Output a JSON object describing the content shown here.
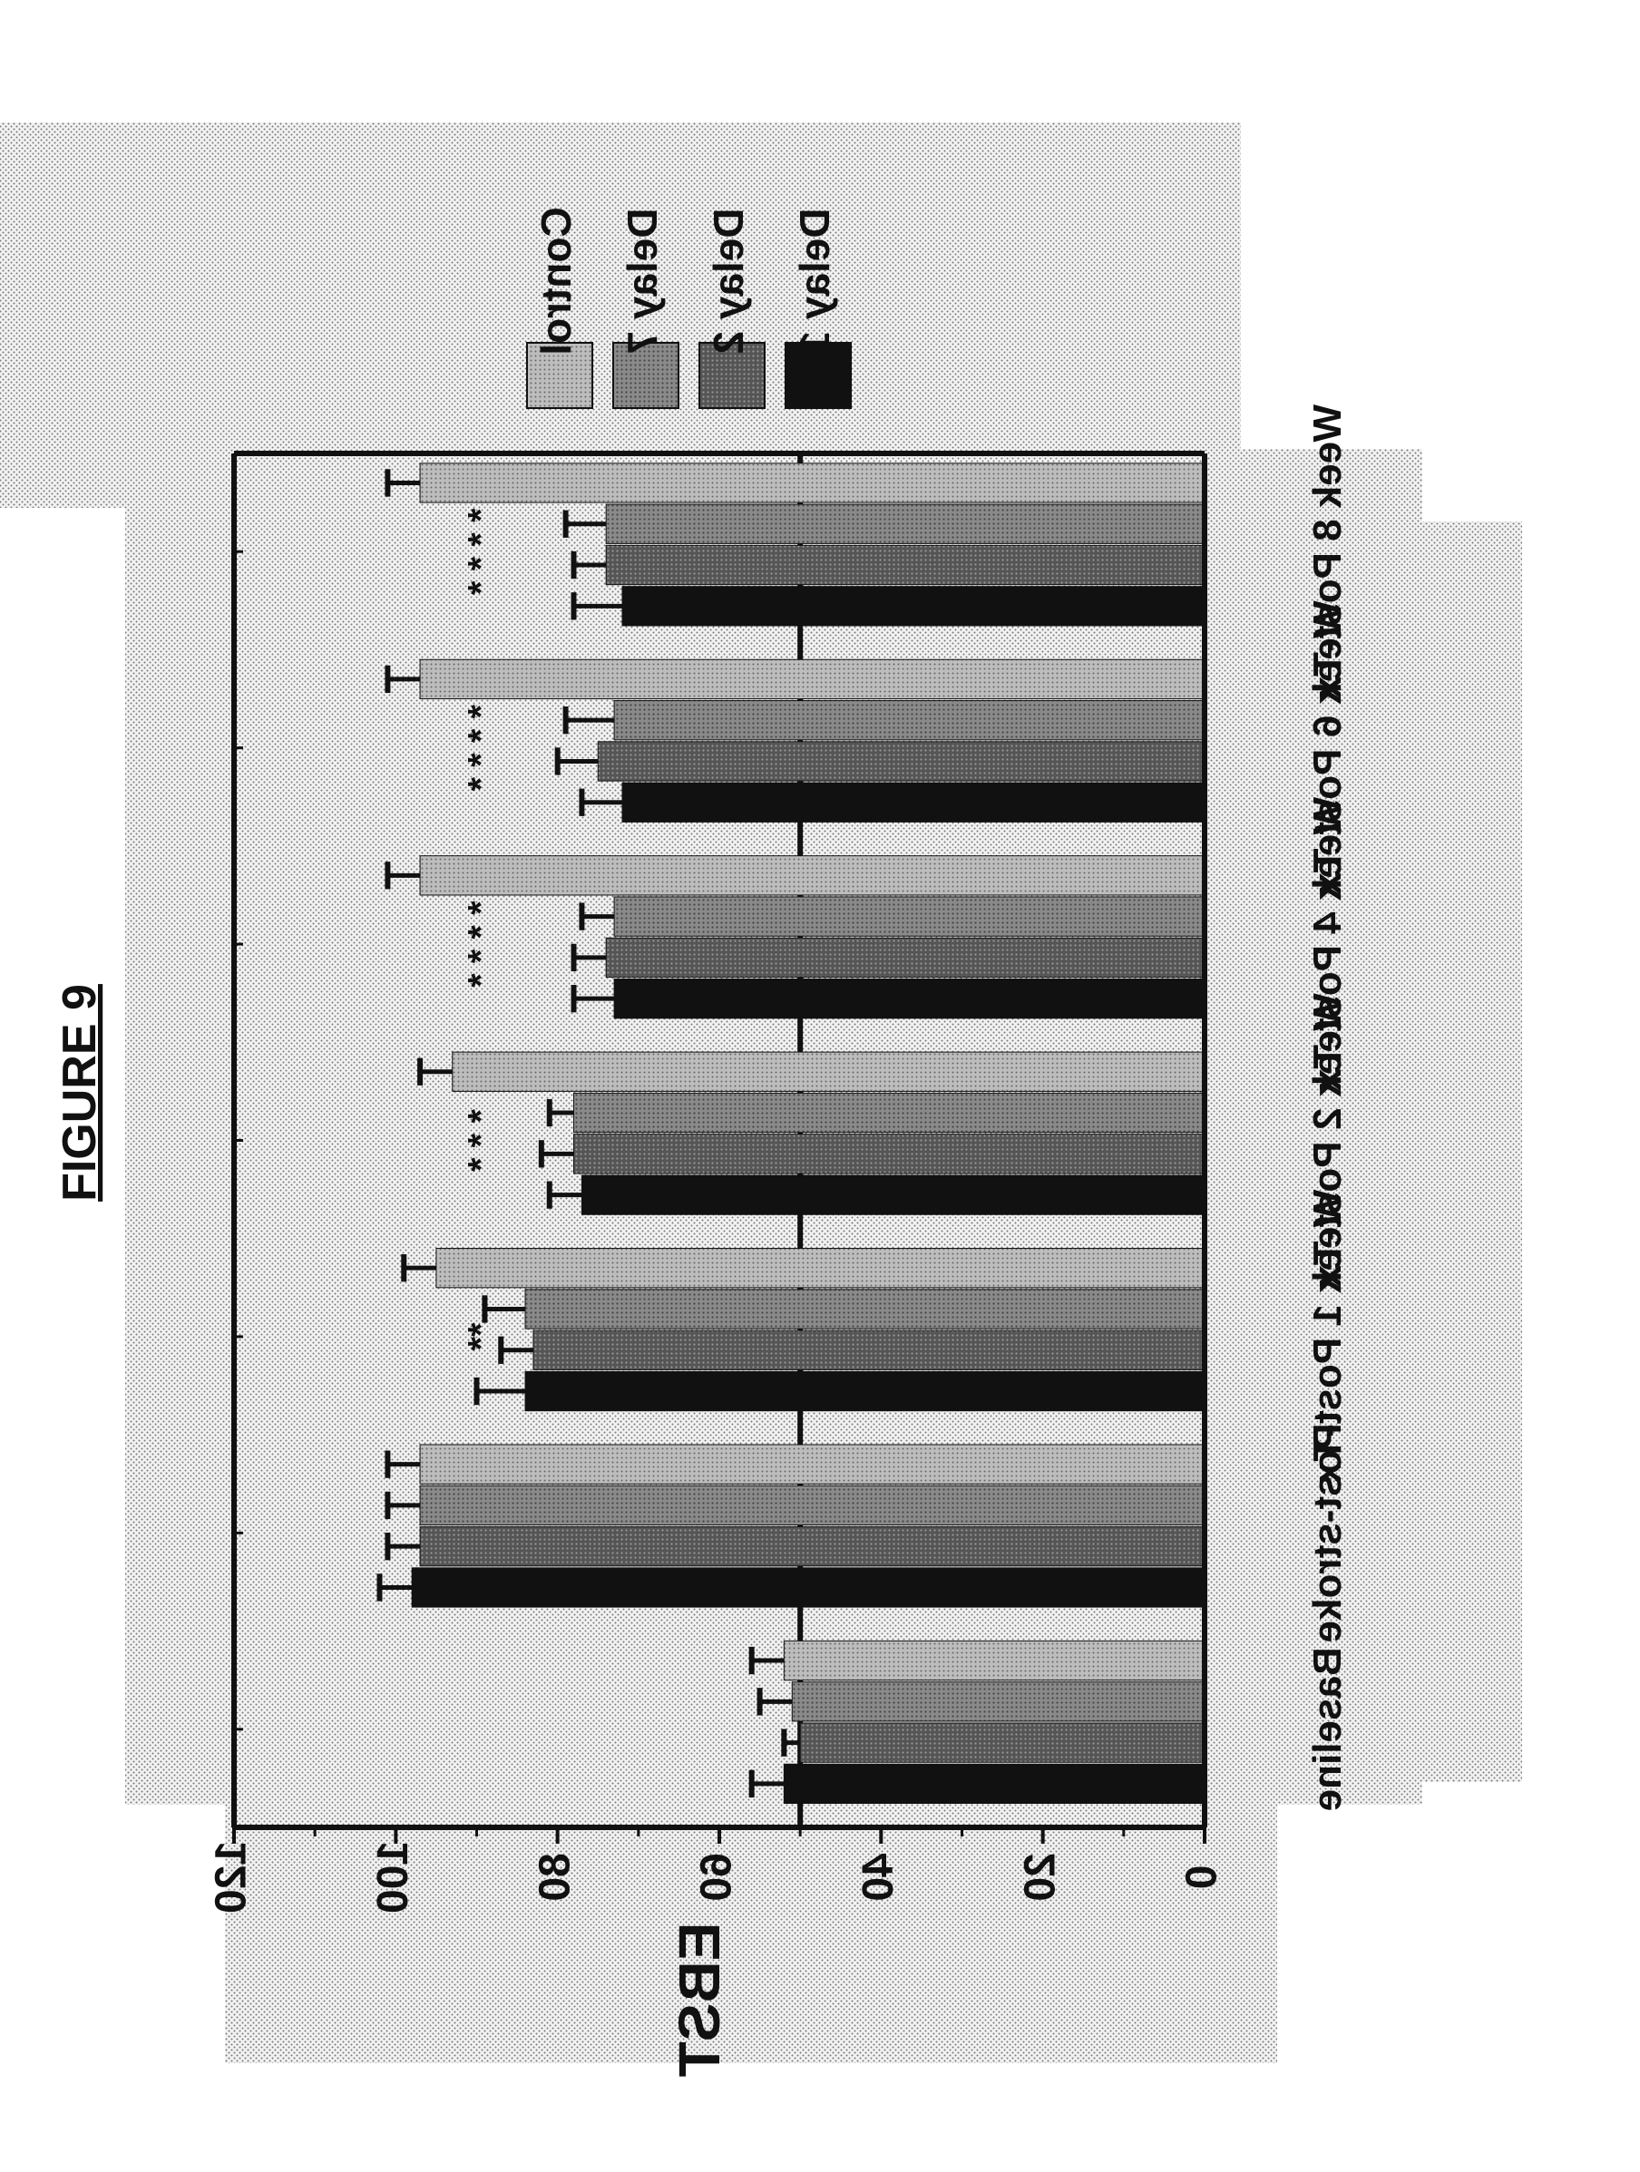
{
  "figure_label": "FIGURE 9",
  "chart_data": {
    "type": "bar",
    "title": "",
    "xlabel": "",
    "ylabel": "EBST",
    "ylim": [
      0,
      120
    ],
    "yticks": [
      "0",
      "20",
      "40",
      "60",
      "80",
      "100",
      "120"
    ],
    "reference_line": 50,
    "categories": [
      "Baseline",
      "Post-stroke",
      "Week 1 Post-Tx",
      "Week 2 Post-Tx",
      "Week 4 Post-Tx",
      "Week 6 Post-Tx",
      "Week 8 Post-Tx"
    ],
    "series": [
      {
        "name": "Delay 1",
        "color": "#111111",
        "values": [
          52,
          98,
          84,
          77,
          73,
          72,
          72
        ],
        "errors": [
          4,
          4,
          6,
          4,
          5,
          5,
          6
        ]
      },
      {
        "name": "Delay 2",
        "color": "#5a5a5a",
        "values": [
          50,
          97,
          83,
          78,
          74,
          75,
          74
        ],
        "errors": [
          2,
          4,
          4,
          4,
          4,
          5,
          4
        ]
      },
      {
        "name": "Delay 7",
        "color": "#8a8a8a",
        "values": [
          51,
          97,
          84,
          78,
          73,
          73,
          74
        ],
        "errors": [
          4,
          4,
          5,
          3,
          4,
          6,
          5
        ]
      },
      {
        "name": "Control",
        "color": "#b3b3b3",
        "values": [
          52,
          97,
          95,
          93,
          97,
          97,
          97
        ],
        "errors": [
          4,
          4,
          4,
          4,
          4,
          4,
          4
        ]
      }
    ],
    "annotations": [
      "**",
      "* * *",
      "* * * *",
      "* * * *",
      "* * * *"
    ],
    "legend_position": "top-right"
  }
}
